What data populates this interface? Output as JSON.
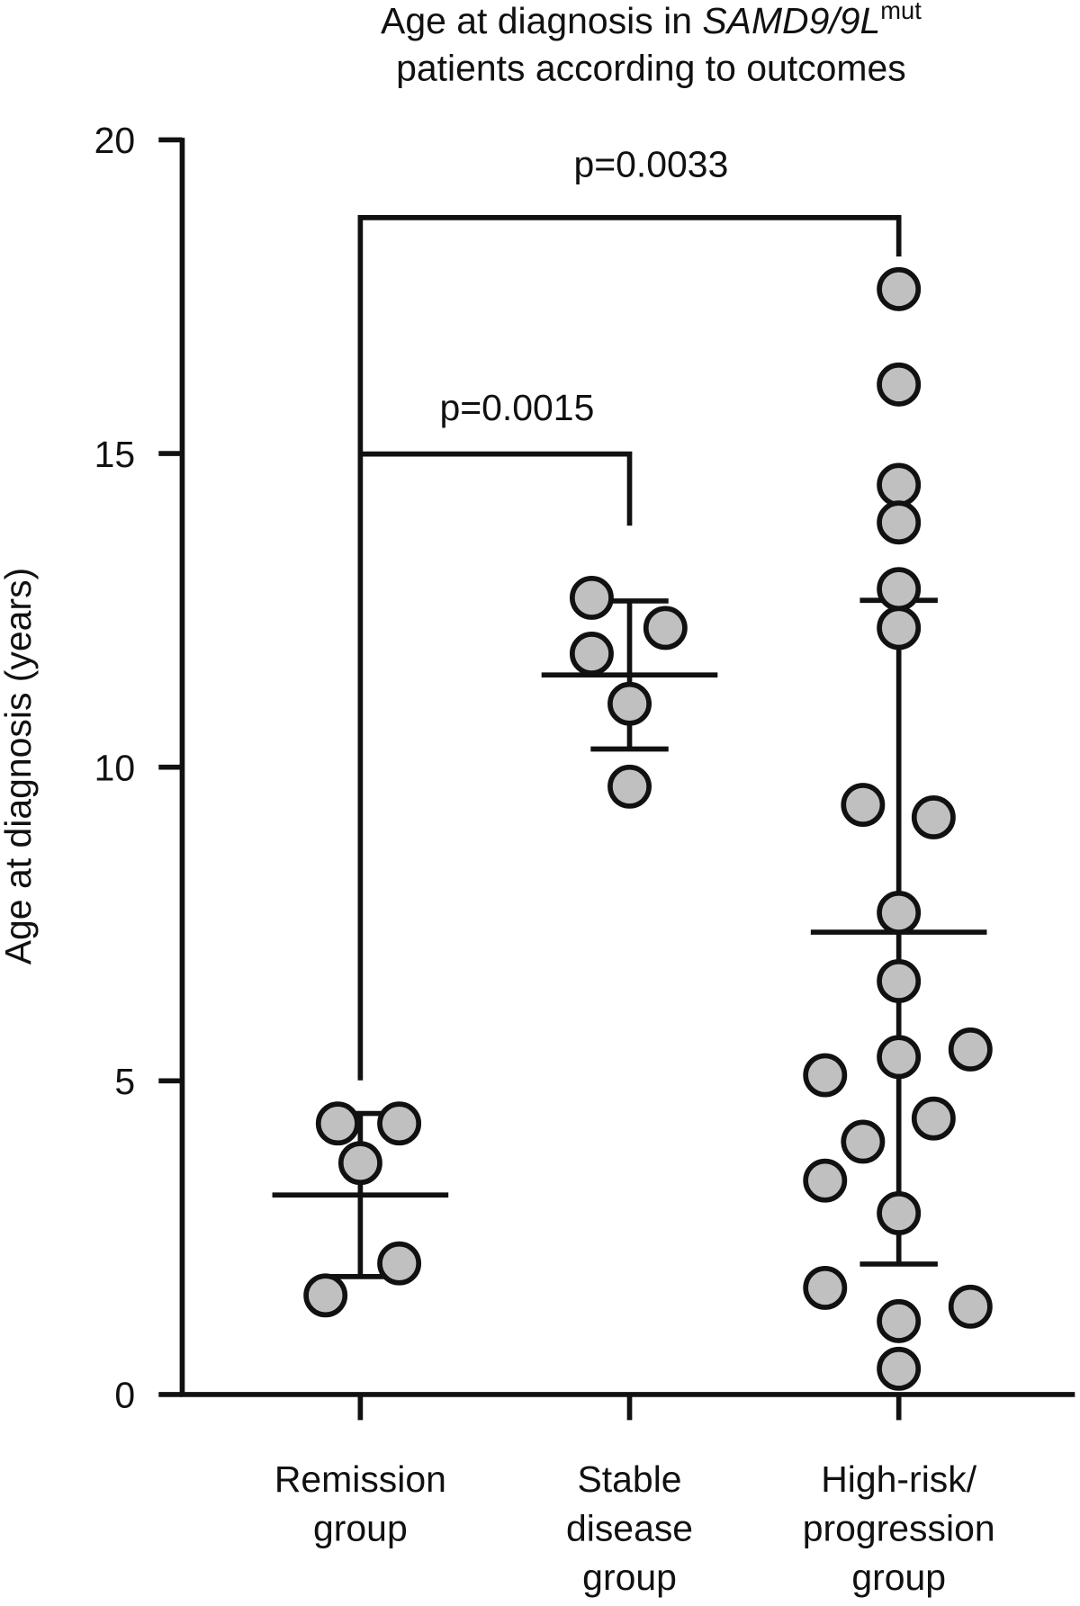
{
  "chart_data": {
    "type": "dot",
    "title": {
      "line1": "Age at diagnosis in",
      "gene": "SAMD9/9L",
      "superscript": "mut",
      "line2": "patients according to outcomes"
    },
    "y_label": "Age at diagnosis (years)",
    "categories": [
      [
        "Remission",
        "group"
      ],
      [
        "Stable",
        "disease",
        "group"
      ],
      [
        "High-risk/",
        "progression",
        "group"
      ]
    ],
    "groups": [
      [
        1.58,
        2.09,
        3.69,
        4.32,
        4.32
      ],
      [
        12.7,
        12.22,
        11.81,
        11.01,
        9.69
      ],
      [
        17.62,
        16.1,
        14.5,
        13.9,
        12.84,
        12.22,
        9.4,
        9.2,
        7.68,
        6.59,
        5.5,
        5.38,
        5.09,
        4.4,
        4.03,
        3.41,
        2.89,
        1.7,
        1.4,
        1.17,
        0.41
      ]
    ],
    "mean": [
      3.18,
      11.47,
      7.37
    ],
    "sd": [
      1.3,
      1.18,
      5.29
    ],
    "color": "#c0c0c0",
    "annotations": [
      "p=0.0033",
      "p=0.0015"
    ],
    "ylim": [
      0,
      20
    ],
    "yticks": [
      0,
      5,
      10,
      15,
      20
    ]
  }
}
